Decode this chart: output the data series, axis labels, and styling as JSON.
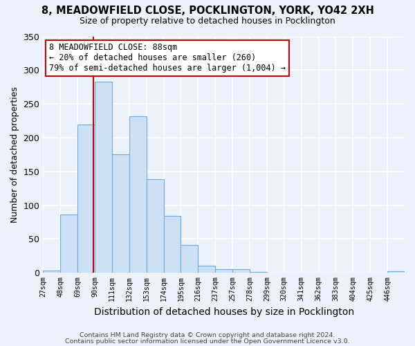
{
  "title": "8, MEADOWFIELD CLOSE, POCKLINGTON, YORK, YO42 2XH",
  "subtitle": "Size of property relative to detached houses in Pocklington",
  "xlabel": "Distribution of detached houses by size in Pocklington",
  "ylabel": "Number of detached properties",
  "bin_labels": [
    "27sqm",
    "48sqm",
    "69sqm",
    "90sqm",
    "111sqm",
    "132sqm",
    "153sqm",
    "174sqm",
    "195sqm",
    "216sqm",
    "237sqm",
    "257sqm",
    "278sqm",
    "299sqm",
    "320sqm",
    "341sqm",
    "362sqm",
    "383sqm",
    "404sqm",
    "425sqm",
    "446sqm"
  ],
  "bar_heights": [
    3,
    86,
    219,
    283,
    175,
    232,
    139,
    84,
    41,
    11,
    5,
    5,
    1,
    0,
    0,
    0,
    0,
    0,
    0,
    0,
    2
  ],
  "bar_color": "#cde0f5",
  "bar_edge_color": "#6aacdc",
  "property_value": 88,
  "vline_color": "#cc0000",
  "annotation_line1": "8 MEADOWFIELD CLOSE: 88sqm",
  "annotation_line2": "← 20% of detached houses are smaller (260)",
  "annotation_line3": "79% of semi-detached houses are larger (1,004) →",
  "annotation_box_color": "#ffffff",
  "annotation_box_edge": "#cc0000",
  "ylim": [
    0,
    350
  ],
  "yticks": [
    0,
    50,
    100,
    150,
    200,
    250,
    300,
    350
  ],
  "footer1": "Contains HM Land Registry data © Crown copyright and database right 2024.",
  "footer2": "Contains public sector information licensed under the Open Government Licence v3.0.",
  "background_color": "#edf2fa",
  "plot_background": "#edf2fa"
}
